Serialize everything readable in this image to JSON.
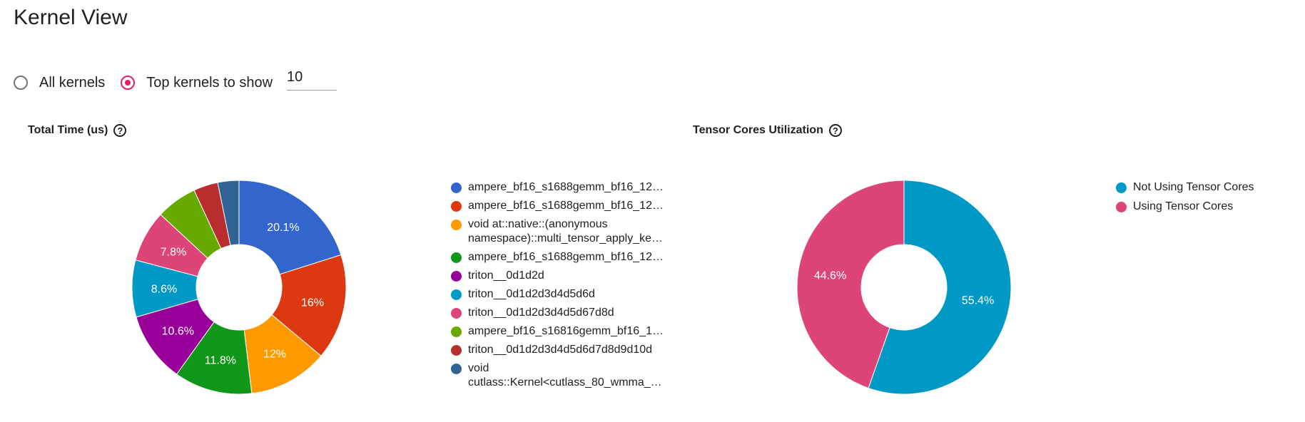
{
  "page": {
    "title": "Kernel View"
  },
  "controls": {
    "all_kernels_label": "All kernels",
    "top_kernels_label": "Top kernels to show",
    "top_kernels_value": "10",
    "selected": "top"
  },
  "charts": {
    "total_time": {
      "title": "Total Time (us)",
      "help": "?"
    },
    "tensor_cores": {
      "title": "Tensor Cores Utilization",
      "help": "?"
    }
  },
  "chart_data": [
    {
      "type": "pie",
      "title": "Total Time (us)",
      "donut": true,
      "legend_position": "right",
      "slices": [
        {
          "label": [
            "ampere_bf16_s1688gemm_bf16_12…"
          ],
          "value": 20.1,
          "display": "20.1%",
          "color": "#3366cc"
        },
        {
          "label": [
            "ampere_bf16_s1688gemm_bf16_12…"
          ],
          "value": 16.0,
          "display": "16%",
          "color": "#dc3912"
        },
        {
          "label": [
            "void at::native::(anonymous",
            "namespace)::multi_tensor_apply_ke…"
          ],
          "value": 12.0,
          "display": "12%",
          "color": "#ff9900"
        },
        {
          "label": [
            "ampere_bf16_s1688gemm_bf16_12…"
          ],
          "value": 11.8,
          "display": "11.8%",
          "color": "#109618"
        },
        {
          "label": [
            "triton__0d1d2d"
          ],
          "value": 10.6,
          "display": "10.6%",
          "color": "#990099"
        },
        {
          "label": [
            "triton__0d1d2d3d4d5d6d"
          ],
          "value": 8.6,
          "display": "8.6%",
          "color": "#0099c6"
        },
        {
          "label": [
            "triton__0d1d2d3d4d5d67d8d"
          ],
          "value": 7.8,
          "display": "7.8%",
          "color": "#dd4477"
        },
        {
          "label": [
            "ampere_bf16_s16816gemm_bf16_1…"
          ],
          "value": 6.2,
          "display": "",
          "color": "#66aa00"
        },
        {
          "label": [
            "triton__0d1d2d3d4d5d6d7d8d9d10d"
          ],
          "value": 3.7,
          "display": "",
          "color": "#b82e2e"
        },
        {
          "label": [
            "void",
            "cutlass::Kernel<cutlass_80_wmma_…"
          ],
          "value": 3.2,
          "display": "",
          "color": "#316395"
        }
      ]
    },
    {
      "type": "pie",
      "title": "Tensor Cores Utilization",
      "donut": true,
      "legend_position": "right",
      "slices": [
        {
          "label": [
            "Not Using Tensor Cores"
          ],
          "value": 55.4,
          "display": "55.4%",
          "color": "#0099c6"
        },
        {
          "label": [
            "Using Tensor Cores"
          ],
          "value": 44.6,
          "display": "44.6%",
          "color": "#dd4477"
        }
      ]
    }
  ]
}
